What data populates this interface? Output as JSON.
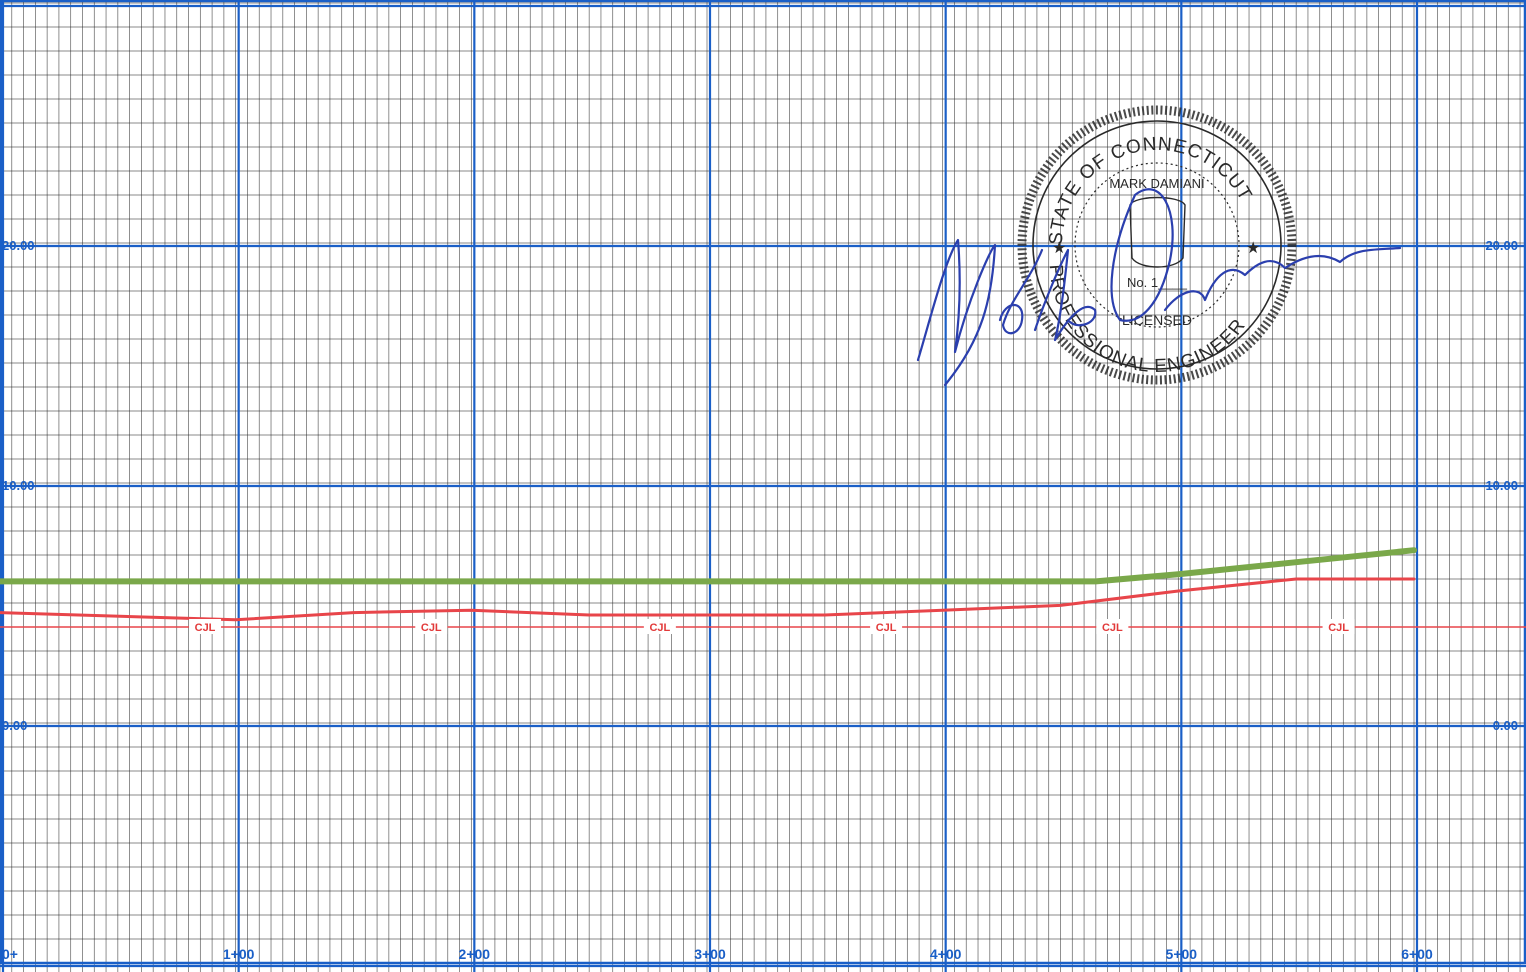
{
  "chart_data": {
    "type": "line",
    "title": "",
    "xlabel": "",
    "ylabel": "",
    "x_tick_labels": [
      "0+",
      "1+00",
      "2+00",
      "3+00",
      "4+00",
      "5+00",
      "6+00"
    ],
    "y_tick_labels_left": [
      "20.00",
      "10.00",
      "0.00"
    ],
    "y_tick_labels_right": [
      "20.00",
      "10.00",
      "0.00"
    ],
    "y_ticks": [
      20,
      10,
      0
    ],
    "xlim": [
      0,
      600
    ],
    "ylim": [
      -10,
      30
    ],
    "grid": true,
    "line_labels": [
      "CJL",
      "CJL",
      "CJL",
      "CJL",
      "CJL",
      "CJL"
    ],
    "series": [
      {
        "color": "#7aa84a",
        "x": [
          0,
          100,
          200,
          300,
          400,
          465,
          500,
          550,
          600
        ],
        "values": [
          5.9,
          5.9,
          5.9,
          5.9,
          5.9,
          5.9,
          6.2,
          6.7,
          7.2
        ]
      },
      {
        "color": "#e8454a",
        "x": [
          0,
          100,
          150,
          200,
          250,
          300,
          350,
          400,
          450,
          500,
          550,
          600
        ],
        "values": [
          4.6,
          4.3,
          4.6,
          4.7,
          4.5,
          4.5,
          4.5,
          4.7,
          4.9,
          5.5,
          6.0,
          6.0
        ]
      },
      {
        "color": "#e8454a",
        "x": [
          0,
          600
        ],
        "values": [
          4.0,
          4.0
        ]
      }
    ]
  },
  "seal": {
    "ring_text_top": "STATE OF CONNECTICUT",
    "ring_text_bottom": "PROFESSIONAL ENGINEER",
    "name_line": "MARK DAMIANI",
    "number_line": "No. 1____",
    "licensed_line": "LICENSED"
  },
  "colors": {
    "major_grid": "#1a5fc7",
    "minor_grid": "#2b2b2b",
    "ground": "#7aa84a",
    "profile": "#e8454a",
    "signature": "#2b3fae"
  }
}
